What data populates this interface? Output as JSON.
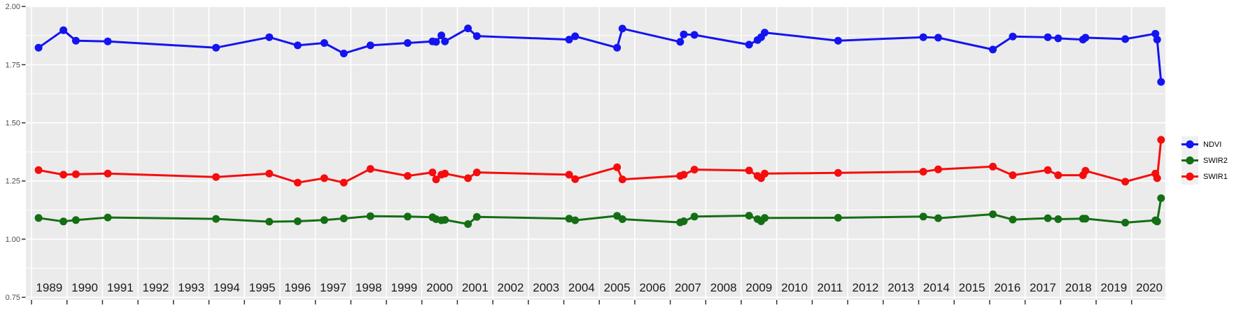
{
  "chart_data": {
    "type": "line",
    "title": "",
    "xlabel": "",
    "ylabel": "",
    "grid": true,
    "panel_bg": "#EBEBEB",
    "grid_color": "#FFFFFF",
    "tick_color": "#333333",
    "y_axis_text_color": "#4D4D4D",
    "x_axis_text_color": "#1A1A1A",
    "xlim": [
      1988.84,
      2020.95
    ],
    "ylim": [
      0.74,
      2.0
    ],
    "y_ticks": {
      "values": [
        2.0,
        1.75,
        1.5,
        1.25,
        1.0,
        0.75
      ],
      "labels": [
        "2.00",
        "1.75",
        "1.50",
        "1.25",
        "1.00",
        "0.75"
      ]
    },
    "y_minor_ticks": [
      1.875,
      1.625,
      1.375,
      1.125,
      0.875
    ],
    "x_ticks": {
      "years": [
        1989,
        1990,
        1991,
        1992,
        1993,
        1994,
        1995,
        1996,
        1997,
        1998,
        1999,
        2000,
        2001,
        2002,
        2003,
        2004,
        2005,
        2006,
        2007,
        2008,
        2009,
        2010,
        2011,
        2012,
        2013,
        2014,
        2015,
        2016,
        2017,
        2018,
        2019,
        2020
      ]
    },
    "x": [
      1989.2,
      1989.9,
      1990.25,
      1991.15,
      1994.2,
      1995.7,
      1996.5,
      1997.25,
      1997.8,
      1998.55,
      1999.6,
      2000.3,
      2000.4,
      2000.55,
      2000.65,
      2001.3,
      2001.55,
      2004.15,
      2004.32,
      2005.5,
      2005.65,
      2007.28,
      2007.38,
      2007.68,
      2009.22,
      2009.46,
      2009.56,
      2009.66,
      2011.73,
      2014.13,
      2014.55,
      2016.09,
      2016.65,
      2017.64,
      2017.93,
      2018.63,
      2018.7,
      2019.82,
      2020.67,
      2020.72,
      2020.83
    ],
    "series": [
      {
        "name": "NDVI",
        "color": "#1414F0",
        "values": [
          1.823,
          1.898,
          1.853,
          1.85,
          1.823,
          1.868,
          1.833,
          1.843,
          1.798,
          1.833,
          1.843,
          1.85,
          1.848,
          1.876,
          1.85,
          1.906,
          1.873,
          1.858,
          1.872,
          1.823,
          1.905,
          1.848,
          1.88,
          1.878,
          1.836,
          1.856,
          1.868,
          1.888,
          1.853,
          1.868,
          1.866,
          1.815,
          1.871,
          1.868,
          1.863,
          1.858,
          1.866,
          1.86,
          1.883,
          1.858,
          1.676
        ]
      },
      {
        "name": "SWIR2",
        "color": "#146E14",
        "values": [
          1.091,
          1.076,
          1.082,
          1.093,
          1.087,
          1.075,
          1.077,
          1.082,
          1.089,
          1.099,
          1.097,
          1.094,
          1.086,
          1.081,
          1.083,
          1.065,
          1.096,
          1.088,
          1.081,
          1.1,
          1.086,
          1.072,
          1.077,
          1.097,
          1.101,
          1.086,
          1.077,
          1.091,
          1.092,
          1.097,
          1.09,
          1.107,
          1.084,
          1.09,
          1.086,
          1.088,
          1.088,
          1.071,
          1.081,
          1.076,
          1.176
        ]
      },
      {
        "name": "SWIR1",
        "color": "#F50D0D",
        "values": [
          1.297,
          1.277,
          1.279,
          1.282,
          1.267,
          1.282,
          1.243,
          1.262,
          1.243,
          1.302,
          1.272,
          1.287,
          1.257,
          1.277,
          1.282,
          1.262,
          1.287,
          1.277,
          1.258,
          1.309,
          1.257,
          1.272,
          1.277,
          1.299,
          1.295,
          1.272,
          1.262,
          1.282,
          1.285,
          1.29,
          1.3,
          1.312,
          1.275,
          1.297,
          1.275,
          1.275,
          1.294,
          1.247,
          1.282,
          1.262,
          1.427
        ]
      }
    ],
    "legend": {
      "position": "right",
      "key_bg": "#F0F0F0",
      "items": [
        {
          "label": "NDVI",
          "color": "#1414F0"
        },
        {
          "label": "SWIR2",
          "color": "#146E14"
        },
        {
          "label": "SWIR1",
          "color": "#F50D0D"
        }
      ]
    }
  }
}
